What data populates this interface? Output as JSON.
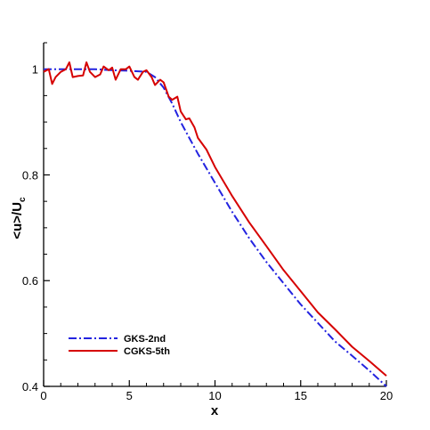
{
  "chart_data": {
    "type": "line",
    "xlabel": "x",
    "ylabel_main": "<u>/U",
    "ylabel_sub": "c",
    "xlim": [
      0,
      20
    ],
    "ylim": [
      0.4,
      1.05
    ],
    "xticks": [
      0,
      5,
      10,
      15,
      20
    ],
    "yticks": [
      0.4,
      0.6,
      0.8,
      1
    ],
    "x_tick_labels": [
      "0",
      "5",
      "10",
      "15",
      "20"
    ],
    "y_tick_labels": [
      "0.4",
      "0.6",
      "0.8",
      "1"
    ],
    "grid": false,
    "legend_position": "bottom-left",
    "series": [
      {
        "name": "GKS-2nd",
        "color": "#2323e0",
        "dash": "dashdot",
        "x": [
          0,
          1,
          2,
          3,
          4,
          5,
          6,
          6.5,
          7,
          7.5,
          8,
          8.5,
          9,
          10,
          11,
          12,
          13,
          14,
          15,
          16,
          17,
          18,
          19,
          20
        ],
        "y": [
          1.0,
          1.0,
          1.0,
          1.0,
          0.998,
          0.997,
          0.995,
          0.985,
          0.965,
          0.935,
          0.9,
          0.87,
          0.84,
          0.785,
          0.73,
          0.68,
          0.635,
          0.595,
          0.555,
          0.52,
          0.485,
          0.458,
          0.43,
          0.4
        ]
      },
      {
        "name": "CGKS-5th",
        "color": "#d60000",
        "dash": "solid",
        "x": [
          0,
          0.3,
          0.5,
          0.7,
          1.0,
          1.3,
          1.5,
          1.7,
          2.0,
          2.3,
          2.5,
          2.7,
          3.0,
          3.3,
          3.5,
          3.8,
          4.0,
          4.2,
          4.5,
          4.8,
          5.0,
          5.3,
          5.5,
          5.8,
          6.0,
          6.3,
          6.5,
          6.8,
          7.0,
          7.3,
          7.5,
          7.8,
          8.0,
          8.3,
          8.5,
          8.8,
          9.0,
          9.5,
          10,
          11,
          12,
          13,
          14,
          15,
          16,
          17,
          18,
          19,
          20
        ],
        "y": [
          0.995,
          1.0,
          0.972,
          0.985,
          0.995,
          1.0,
          1.013,
          0.985,
          0.987,
          0.988,
          1.013,
          0.995,
          0.985,
          0.99,
          1.005,
          0.998,
          1.003,
          0.98,
          1.0,
          1.0,
          1.005,
          0.985,
          0.98,
          0.995,
          0.998,
          0.985,
          0.97,
          0.98,
          0.975,
          0.948,
          0.942,
          0.948,
          0.92,
          0.905,
          0.907,
          0.89,
          0.87,
          0.848,
          0.815,
          0.76,
          0.71,
          0.665,
          0.62,
          0.58,
          0.54,
          0.508,
          0.475,
          0.448,
          0.42
        ]
      }
    ]
  }
}
